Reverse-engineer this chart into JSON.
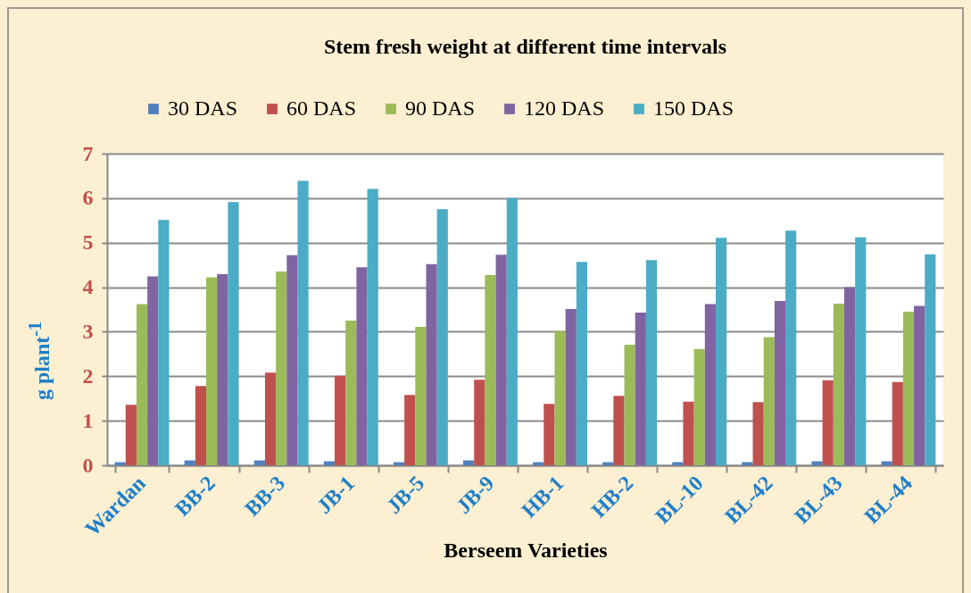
{
  "chart_data": {
    "type": "bar",
    "title": "Stem fresh weight at different time intervals",
    "xlabel": "Berseem Varieties",
    "ylabel": "g plant$^{-1}$",
    "categories": [
      "Wardan",
      "BB-2",
      "BB-3",
      "JB-1",
      "JB-5",
      "JB-9",
      "HB-1",
      "HB-2",
      "BL-10",
      "BL-42",
      "BL-43",
      "BL-44"
    ],
    "series": [
      {
        "name": "30 DAS",
        "color": "#4f81bd",
        "values": [
          0.07,
          0.11,
          0.11,
          0.09,
          0.07,
          0.11,
          0.07,
          0.07,
          0.07,
          0.07,
          0.09,
          0.09
        ]
      },
      {
        "name": "60 DAS",
        "color": "#c0504d",
        "values": [
          1.36,
          1.78,
          2.08,
          2.01,
          1.58,
          1.92,
          1.38,
          1.56,
          1.43,
          1.42,
          1.91,
          1.87
        ]
      },
      {
        "name": "90 DAS",
        "color": "#9bbb59",
        "values": [
          3.62,
          4.22,
          4.35,
          3.25,
          3.11,
          4.27,
          3.02,
          2.71,
          2.61,
          2.88,
          3.63,
          3.45
        ]
      },
      {
        "name": "120 DAS",
        "color": "#8064a2",
        "values": [
          4.24,
          4.29,
          4.72,
          4.45,
          4.52,
          4.73,
          3.51,
          3.43,
          3.62,
          3.69,
          4.0,
          3.58
        ]
      },
      {
        "name": "150 DAS",
        "color": "#4bacc6",
        "values": [
          5.51,
          5.91,
          6.39,
          6.21,
          5.75,
          6.0,
          4.57,
          4.61,
          5.11,
          5.27,
          5.12,
          4.74
        ]
      }
    ],
    "ylim": [
      0,
      7
    ],
    "yticks": [
      0,
      1,
      2,
      3,
      4,
      5,
      6,
      7
    ],
    "grid": "y",
    "legend": "top"
  }
}
